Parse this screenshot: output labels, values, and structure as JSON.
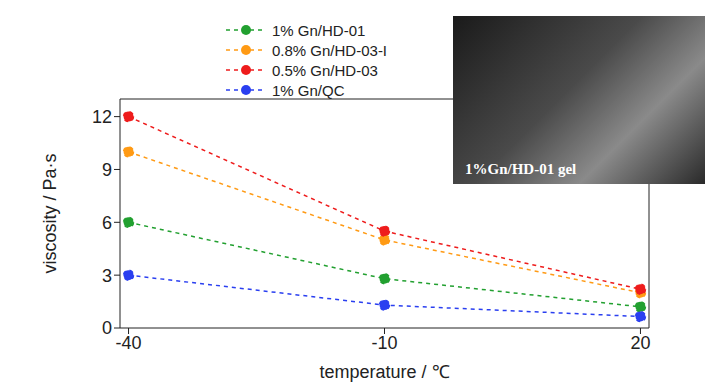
{
  "chart_data": {
    "type": "line",
    "x_label": "temperature / ℃",
    "y_label": "viscosity / Pa·s",
    "x": [
      -40,
      -10,
      20
    ],
    "series": [
      {
        "name": "1% Gn/HD-01",
        "color": "#22a030",
        "values": [
          6,
          2.8,
          1.2
        ]
      },
      {
        "name": "0.8% Gn/HD-03-I",
        "color": "#ff9a14",
        "values": [
          10,
          5.0,
          2.0
        ]
      },
      {
        "name": "0.5% Gn/HD-03",
        "color": "#ee1c1c",
        "values": [
          12,
          5.5,
          2.2
        ]
      },
      {
        "name": "1% Gn/QC",
        "color": "#2a3ff0",
        "values": [
          3,
          1.3,
          0.65
        ]
      }
    ],
    "xlim": [
      -41,
      21
    ],
    "xticks": [
      -40,
      -10,
      20
    ],
    "ylim": [
      0,
      13
    ],
    "yticks": [
      0,
      3,
      6,
      9,
      12
    ],
    "marker": "circle",
    "line_style": "dashed",
    "legend": "top",
    "grid": false,
    "annotation": "1%Gn/HD-01 gel"
  }
}
